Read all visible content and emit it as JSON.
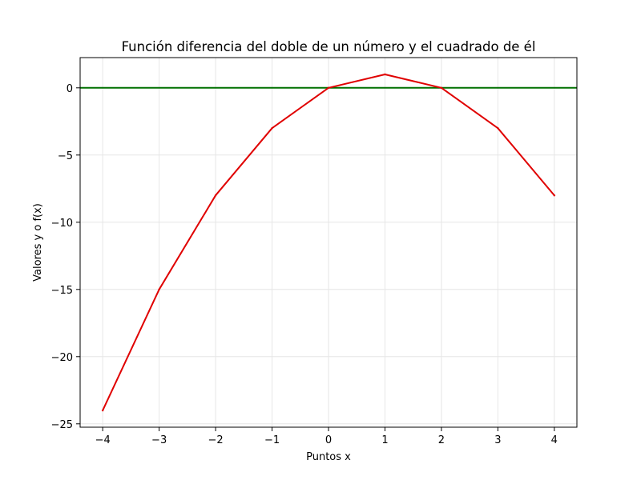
{
  "chart_data": {
    "type": "line",
    "title": "Función diferencia del doble de un número y el cuadrado de él",
    "xlabel": "Puntos x",
    "ylabel": "Valores y o f(x)",
    "x": [
      -4,
      -3,
      -2,
      -1,
      0,
      1,
      2,
      3,
      4
    ],
    "xlim": [
      -4.4,
      4.4
    ],
    "ylim": [
      -25.25,
      2.25
    ],
    "xticks": [
      -4,
      -3,
      -2,
      -1,
      0,
      1,
      2,
      3,
      4
    ],
    "yticks": [
      0,
      -5,
      -10,
      -15,
      -20,
      -25
    ],
    "xtick_labels": [
      "−4",
      "−3",
      "−2",
      "−1",
      "0",
      "1",
      "2",
      "3",
      "4"
    ],
    "ytick_labels": [
      "0",
      "−5",
      "−10",
      "−15",
      "−20",
      "−25"
    ],
    "grid": true,
    "series": [
      {
        "values": [
          -24,
          -15,
          -8,
          -3,
          0,
          1,
          0,
          -3,
          -8
        ],
        "color": "#e00000"
      }
    ],
    "reference_lines": [
      {
        "type": "horizontal",
        "y": 0,
        "color": "#007000"
      }
    ]
  }
}
